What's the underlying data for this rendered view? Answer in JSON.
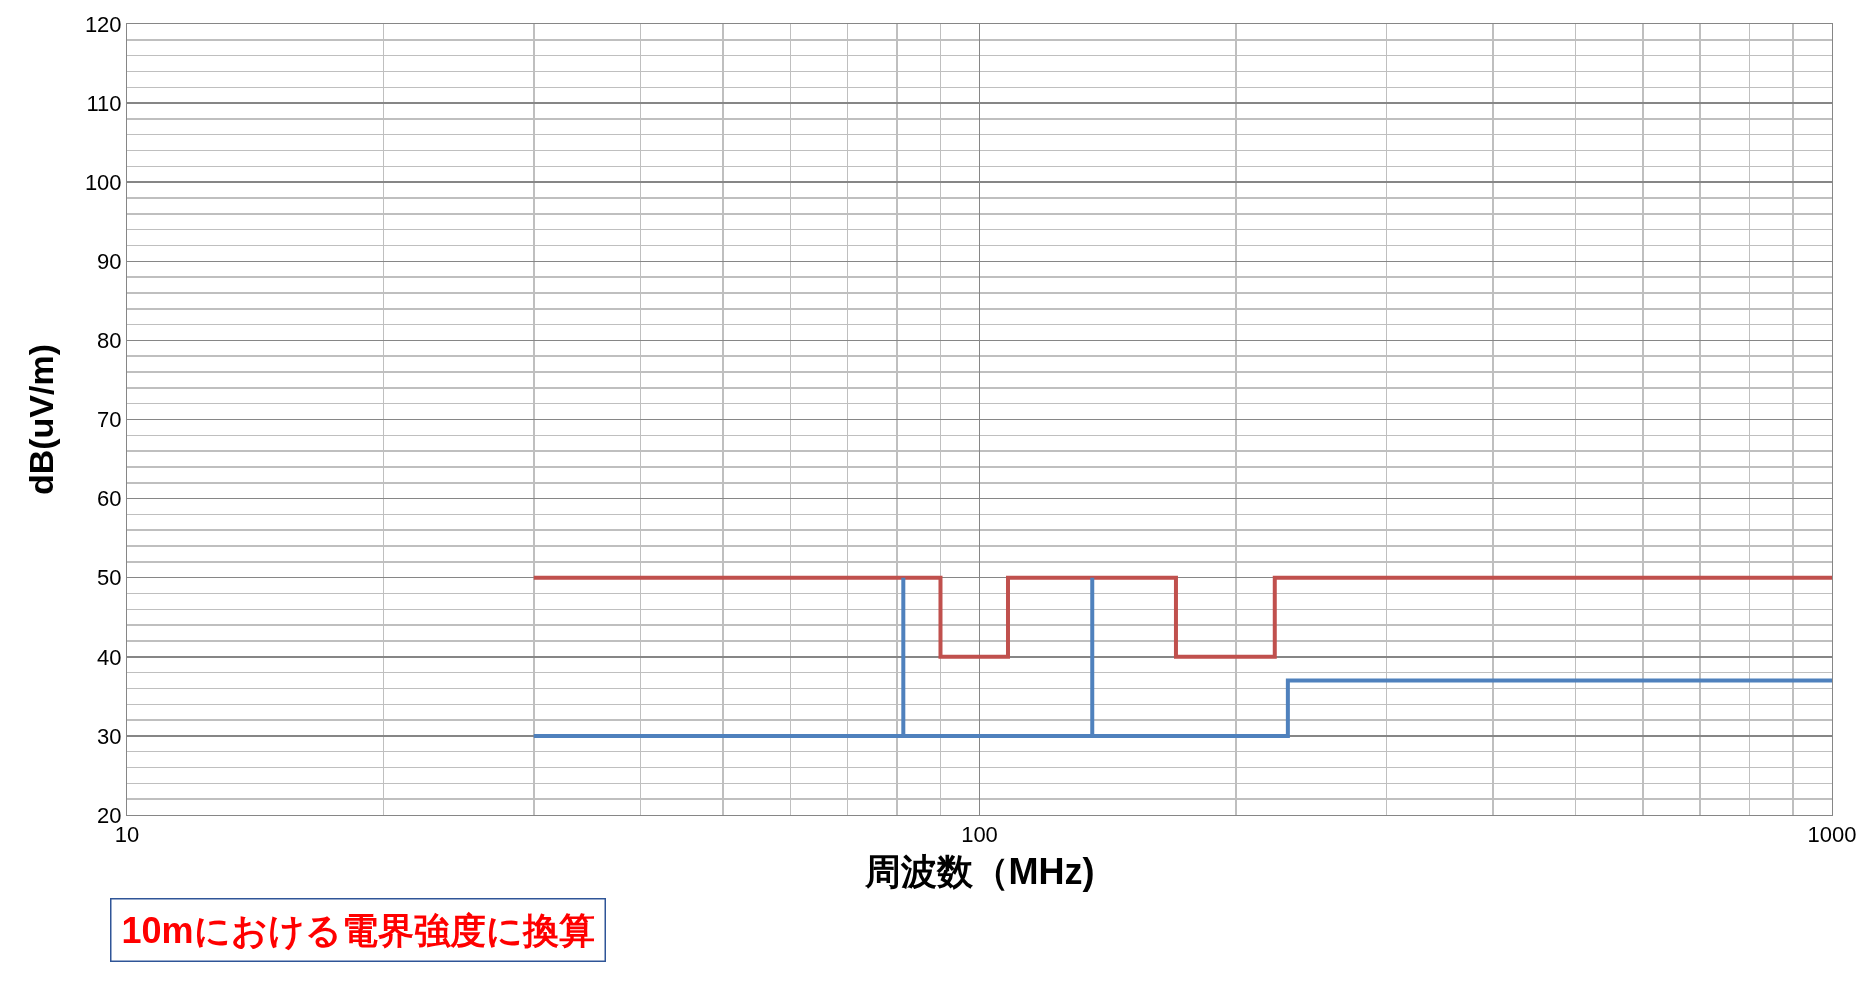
{
  "chart_data": {
    "type": "line",
    "xlabel": "周波数（MHz)",
    "ylabel": "dB(uV/m)",
    "log": "x",
    "grid": true,
    "marker": "none",
    "line_style": "solid",
    "xlim": [
      10,
      1000
    ],
    "xticks": [
      10,
      {
        "value": 20,
        "label": null
      },
      {
        "value": 30,
        "label": null
      },
      {
        "value": 40,
        "label": null
      },
      {
        "value": 50,
        "label": null
      },
      {
        "value": 60,
        "label": null
      },
      {
        "value": 70,
        "label": null
      },
      {
        "value": 80,
        "label": null
      },
      {
        "value": 90,
        "label": null
      },
      100,
      {
        "value": 200,
        "label": null
      },
      {
        "value": 300,
        "label": null
      },
      {
        "value": 400,
        "label": null
      },
      {
        "value": 500,
        "label": null
      },
      {
        "value": 600,
        "label": null
      },
      {
        "value": 700,
        "label": null
      },
      {
        "value": 800,
        "label": null
      },
      {
        "value": 900,
        "label": null
      },
      1000
    ],
    "ylim": [
      20,
      120
    ],
    "yticks": [
      20,
      {
        "value": 22,
        "label": null
      },
      {
        "value": 24,
        "label": null
      },
      {
        "value": 26,
        "label": null
      },
      {
        "value": 28,
        "label": null
      },
      30,
      {
        "value": 32,
        "label": null
      },
      {
        "value": 34,
        "label": null
      },
      {
        "value": 36,
        "label": null
      },
      {
        "value": 38,
        "label": null
      },
      40,
      {
        "value": 42,
        "label": null
      },
      {
        "value": 44,
        "label": null
      },
      {
        "value": 46,
        "label": null
      },
      {
        "value": 48,
        "label": null
      },
      50,
      {
        "value": 52,
        "label": null
      },
      {
        "value": 54,
        "label": null
      },
      {
        "value": 56,
        "label": null
      },
      {
        "value": 58,
        "label": null
      },
      60,
      {
        "value": 62,
        "label": null
      },
      {
        "value": 64,
        "label": null
      },
      {
        "value": 66,
        "label": null
      },
      {
        "value": 68,
        "label": null
      },
      70,
      {
        "value": 72,
        "label": null
      },
      {
        "value": 74,
        "label": null
      },
      {
        "value": 76,
        "label": null
      },
      {
        "value": 78,
        "label": null
      },
      80,
      {
        "value": 82,
        "label": null
      },
      {
        "value": 84,
        "label": null
      },
      {
        "value": 86,
        "label": null
      },
      {
        "value": 88,
        "label": null
      },
      90,
      {
        "value": 92,
        "label": null
      },
      {
        "value": 94,
        "label": null
      },
      {
        "value": 96,
        "label": null
      },
      {
        "value": 98,
        "label": null
      },
      100,
      {
        "value": 102,
        "label": null
      },
      {
        "value": 104,
        "label": null
      },
      {
        "value": 106,
        "label": null
      },
      {
        "value": 108,
        "label": null
      },
      110,
      {
        "value": 112,
        "label": null
      },
      {
        "value": 114,
        "label": null
      },
      {
        "value": 116,
        "label": null
      },
      {
        "value": 118,
        "label": null
      },
      120
    ],
    "series": [
      {
        "color": "#c0504d",
        "x": [
          30,
          90,
          90,
          108,
          108,
          170,
          170,
          222,
          222,
          1000
        ],
        "values": [
          50,
          50,
          40,
          40,
          50,
          50,
          40,
          40,
          50,
          50
        ]
      },
      {
        "color": "#4f81bd",
        "x": [
          30,
          230,
          230,
          1000
        ],
        "values": [
          30,
          30,
          37,
          37
        ]
      },
      {
        "color": "#4f81bd",
        "x": [
          81.4,
          81.4
        ],
        "values": [
          30,
          50
        ]
      },
      {
        "color": "#4f81bd",
        "x": [
          135.6,
          135.6
        ],
        "values": [
          30,
          50
        ]
      }
    ],
    "annotations": [
      "10mにおける電界強度に換算"
    ]
  }
}
